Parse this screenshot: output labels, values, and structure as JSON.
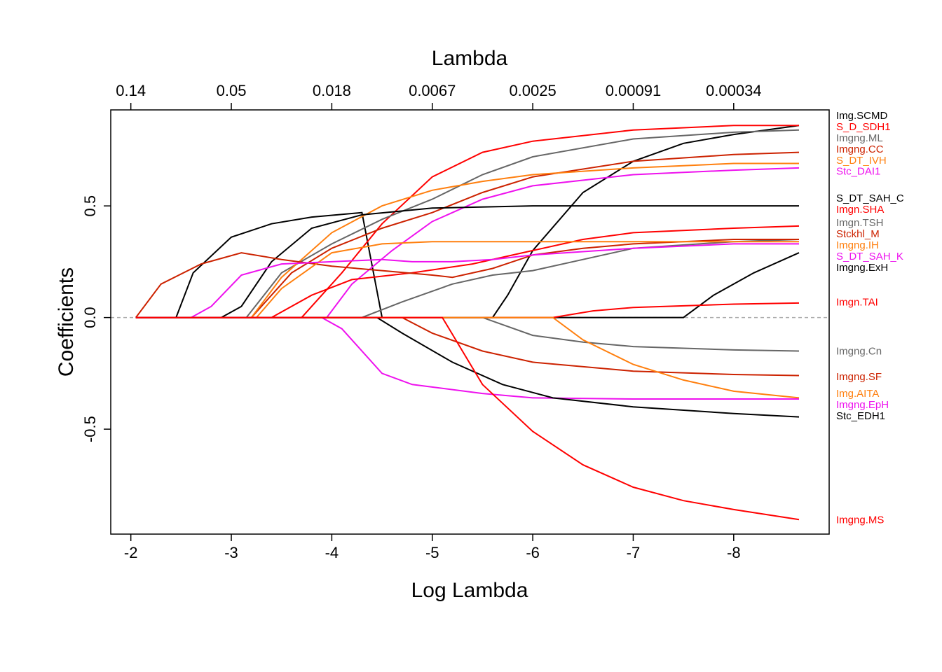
{
  "chart_data": {
    "type": "line",
    "title": "",
    "xlabel": "Log Lambda",
    "ylabel": "Coefficients",
    "top_axis_label": "Lambda",
    "xlim": [
      -1.8,
      -8.95
    ],
    "ylim": [
      -0.97,
      0.93
    ],
    "x_ticks": [
      -2,
      -3,
      -4,
      -5,
      -6,
      -7,
      -8
    ],
    "x_tick_labels": [
      "-2",
      "-3",
      "-4",
      "-5",
      "-6",
      "-7",
      "-8"
    ],
    "y_ticks": [
      0.5,
      0.0,
      -0.5
    ],
    "y_tick_labels": [
      "0.5",
      "0.0",
      "-0.5"
    ],
    "top_ticks": [
      -2,
      -3,
      -4,
      -5,
      -6,
      -7,
      -8
    ],
    "top_tick_labels": [
      "0.14",
      "0.05",
      "0.018",
      "0.0067",
      "0.0025",
      "0.00091",
      "0.00034"
    ],
    "zero_line": true,
    "grid": false,
    "series": [
      {
        "name": "Img.SCMD",
        "color": "#000000",
        "label_y": 0.905,
        "points": [
          [
            -2.05,
            0
          ],
          [
            -2.45,
            0
          ],
          [
            -2.62,
            0.2
          ],
          [
            -3.0,
            0.36
          ],
          [
            -3.4,
            0.42
          ],
          [
            -3.8,
            0.45
          ],
          [
            -4.3,
            0.47
          ],
          [
            -4.5,
            0
          ],
          [
            -5.6,
            0
          ],
          [
            -5.75,
            0.1
          ],
          [
            -6.0,
            0.3
          ],
          [
            -6.5,
            0.56
          ],
          [
            -7.0,
            0.7
          ],
          [
            -7.5,
            0.78
          ],
          [
            -8.0,
            0.82
          ],
          [
            -8.65,
            0.86
          ]
        ]
      },
      {
        "name": "S_D_SDH1",
        "color": "#ff0000",
        "label_y": 0.855,
        "points": [
          [
            -2.05,
            0
          ],
          [
            -3.7,
            0
          ],
          [
            -4.1,
            0.2
          ],
          [
            -4.5,
            0.42
          ],
          [
            -5.0,
            0.63
          ],
          [
            -5.5,
            0.74
          ],
          [
            -6.0,
            0.79
          ],
          [
            -7.0,
            0.84
          ],
          [
            -8.0,
            0.86
          ],
          [
            -8.65,
            0.86
          ]
        ]
      },
      {
        "name": "Imgng.ML",
        "color": "#666666",
        "label_y": 0.805,
        "points": [
          [
            -2.05,
            0
          ],
          [
            -3.15,
            0
          ],
          [
            -3.5,
            0.2
          ],
          [
            -4.0,
            0.33
          ],
          [
            -4.5,
            0.44
          ],
          [
            -5.0,
            0.53
          ],
          [
            -5.5,
            0.64
          ],
          [
            -6.0,
            0.72
          ],
          [
            -7.0,
            0.8
          ],
          [
            -8.0,
            0.83
          ],
          [
            -8.65,
            0.84
          ]
        ]
      },
      {
        "name": "Imgng.CC",
        "color": "#cc2200",
        "label_y": 0.755,
        "points": [
          [
            -2.05,
            0
          ],
          [
            -3.2,
            0
          ],
          [
            -3.6,
            0.2
          ],
          [
            -4.0,
            0.31
          ],
          [
            -4.5,
            0.4
          ],
          [
            -5.0,
            0.47
          ],
          [
            -5.5,
            0.56
          ],
          [
            -6.0,
            0.63
          ],
          [
            -7.0,
            0.7
          ],
          [
            -8.0,
            0.73
          ],
          [
            -8.65,
            0.74
          ]
        ]
      },
      {
        "name": "S_DT_IVH",
        "color": "#ff7f0e",
        "label_y": 0.705,
        "points": [
          [
            -2.05,
            0
          ],
          [
            -3.2,
            0
          ],
          [
            -3.5,
            0.18
          ],
          [
            -4.0,
            0.38
          ],
          [
            -4.5,
            0.5
          ],
          [
            -5.0,
            0.57
          ],
          [
            -5.5,
            0.61
          ],
          [
            -6.0,
            0.64
          ],
          [
            -7.0,
            0.67
          ],
          [
            -8.0,
            0.69
          ],
          [
            -8.65,
            0.69
          ]
        ]
      },
      {
        "name": "Stc_DAI1",
        "color": "#ee11ee",
        "label_y": 0.655,
        "points": [
          [
            -2.05,
            0
          ],
          [
            -3.95,
            0
          ],
          [
            -4.2,
            0.15
          ],
          [
            -4.6,
            0.3
          ],
          [
            -5.0,
            0.43
          ],
          [
            -5.5,
            0.53
          ],
          [
            -6.0,
            0.59
          ],
          [
            -7.0,
            0.64
          ],
          [
            -8.0,
            0.66
          ],
          [
            -8.65,
            0.67
          ]
        ]
      },
      {
        "name": "S_DT_SAH_C",
        "color": "#000000",
        "label_y": 0.535,
        "points": [
          [
            -2.05,
            0
          ],
          [
            -2.9,
            0
          ],
          [
            -3.1,
            0.05
          ],
          [
            -3.4,
            0.25
          ],
          [
            -3.8,
            0.4
          ],
          [
            -4.3,
            0.46
          ],
          [
            -5.0,
            0.49
          ],
          [
            -6.0,
            0.5
          ],
          [
            -7.0,
            0.5
          ],
          [
            -8.0,
            0.5
          ],
          [
            -8.65,
            0.5
          ]
        ]
      },
      {
        "name": "Imgn.SHA",
        "color": "#ff0000",
        "label_y": 0.485,
        "points": [
          [
            -2.05,
            0
          ],
          [
            -3.4,
            0
          ],
          [
            -3.8,
            0.1
          ],
          [
            -4.2,
            0.17
          ],
          [
            -4.8,
            0.2
          ],
          [
            -5.4,
            0.24
          ],
          [
            -6.0,
            0.3
          ],
          [
            -6.5,
            0.35
          ],
          [
            -7.0,
            0.38
          ],
          [
            -8.0,
            0.4
          ],
          [
            -8.65,
            0.41
          ]
        ]
      },
      {
        "name": "Imgn.TSH",
        "color": "#666666",
        "label_y": 0.425,
        "points": [
          [
            -2.05,
            0
          ],
          [
            -4.3,
            0
          ],
          [
            -4.7,
            0.07
          ],
          [
            -5.2,
            0.15
          ],
          [
            -5.6,
            0.19
          ],
          [
            -6.0,
            0.21
          ],
          [
            -6.5,
            0.26
          ],
          [
            -7.0,
            0.31
          ],
          [
            -8.0,
            0.34
          ],
          [
            -8.65,
            0.35
          ]
        ]
      },
      {
        "name": "Stckhl_M",
        "color": "#cc2200",
        "label_y": 0.375,
        "points": [
          [
            -2.05,
            0
          ],
          [
            -2.3,
            0.15
          ],
          [
            -2.7,
            0.24
          ],
          [
            -3.1,
            0.29
          ],
          [
            -3.5,
            0.26
          ],
          [
            -4.0,
            0.23
          ],
          [
            -4.5,
            0.21
          ],
          [
            -5.0,
            0.19
          ],
          [
            -5.2,
            0.18
          ],
          [
            -5.6,
            0.22
          ],
          [
            -6.0,
            0.28
          ],
          [
            -6.5,
            0.31
          ],
          [
            -7.0,
            0.33
          ],
          [
            -8.0,
            0.35
          ],
          [
            -8.65,
            0.35
          ]
        ]
      },
      {
        "name": "Imgng.IH",
        "color": "#ff7f0e",
        "label_y": 0.325,
        "points": [
          [
            -2.05,
            0
          ],
          [
            -3.25,
            0
          ],
          [
            -3.5,
            0.13
          ],
          [
            -4.0,
            0.29
          ],
          [
            -4.5,
            0.33
          ],
          [
            -5.0,
            0.34
          ],
          [
            -6.0,
            0.34
          ],
          [
            -7.0,
            0.34
          ],
          [
            -8.0,
            0.34
          ],
          [
            -8.65,
            0.34
          ]
        ]
      },
      {
        "name": "S_DT_SAH_K",
        "color": "#ee11ee",
        "label_y": 0.275,
        "points": [
          [
            -2.05,
            0
          ],
          [
            -2.6,
            0
          ],
          [
            -2.8,
            0.05
          ],
          [
            -3.1,
            0.19
          ],
          [
            -3.5,
            0.24
          ],
          [
            -4.0,
            0.25
          ],
          [
            -4.5,
            0.26
          ],
          [
            -4.8,
            0.25
          ],
          [
            -5.2,
            0.25
          ],
          [
            -5.6,
            0.26
          ],
          [
            -6.0,
            0.28
          ],
          [
            -7.0,
            0.31
          ],
          [
            -8.0,
            0.33
          ],
          [
            -8.65,
            0.33
          ]
        ]
      },
      {
        "name": "Imgng.ExH",
        "color": "#000000",
        "label_y": 0.225,
        "points": [
          [
            -2.05,
            0
          ],
          [
            -7.5,
            0
          ],
          [
            -7.8,
            0.1
          ],
          [
            -8.2,
            0.2
          ],
          [
            -8.65,
            0.29
          ]
        ]
      },
      {
        "name": "Imgn.TAI",
        "color": "#ff0000",
        "label_y": 0.07,
        "points": [
          [
            -2.05,
            0
          ],
          [
            -6.2,
            0
          ],
          [
            -6.6,
            0.03
          ],
          [
            -7.0,
            0.045
          ],
          [
            -8.0,
            0.06
          ],
          [
            -8.65,
            0.065
          ]
        ]
      },
      {
        "name": "Imgng.Cn",
        "color": "#666666",
        "label_y": -0.15,
        "points": [
          [
            -2.05,
            0
          ],
          [
            -5.5,
            0
          ],
          [
            -6.0,
            -0.08
          ],
          [
            -6.5,
            -0.11
          ],
          [
            -7.0,
            -0.13
          ],
          [
            -8.0,
            -0.145
          ],
          [
            -8.65,
            -0.15
          ]
        ]
      },
      {
        "name": "Imgng.SF",
        "color": "#cc2200",
        "label_y": -0.265,
        "points": [
          [
            -2.05,
            0
          ],
          [
            -4.7,
            0
          ],
          [
            -5.0,
            -0.07
          ],
          [
            -5.5,
            -0.15
          ],
          [
            -6.0,
            -0.2
          ],
          [
            -7.0,
            -0.24
          ],
          [
            -8.0,
            -0.255
          ],
          [
            -8.65,
            -0.26
          ]
        ]
      },
      {
        "name": "Img.AITA",
        "color": "#ff7f0e",
        "label_y": -0.34,
        "points": [
          [
            -2.05,
            0
          ],
          [
            -6.2,
            0
          ],
          [
            -6.5,
            -0.1
          ],
          [
            -7.0,
            -0.21
          ],
          [
            -7.5,
            -0.28
          ],
          [
            -8.0,
            -0.33
          ],
          [
            -8.65,
            -0.36
          ]
        ]
      },
      {
        "name": "Imgng.EpH",
        "color": "#ee11ee",
        "label_y": -0.39,
        "points": [
          [
            -2.05,
            0
          ],
          [
            -3.9,
            0
          ],
          [
            -4.1,
            -0.05
          ],
          [
            -4.5,
            -0.25
          ],
          [
            -4.8,
            -0.3
          ],
          [
            -5.5,
            -0.34
          ],
          [
            -6.0,
            -0.36
          ],
          [
            -7.0,
            -0.365
          ],
          [
            -8.0,
            -0.365
          ],
          [
            -8.65,
            -0.365
          ]
        ]
      },
      {
        "name": "Stc_EDH1",
        "color": "#000000",
        "label_y": -0.44,
        "points": [
          [
            -2.05,
            0
          ],
          [
            -4.45,
            0
          ],
          [
            -4.7,
            -0.07
          ],
          [
            -5.2,
            -0.2
          ],
          [
            -5.7,
            -0.3
          ],
          [
            -6.2,
            -0.36
          ],
          [
            -7.0,
            -0.4
          ],
          [
            -8.0,
            -0.43
          ],
          [
            -8.65,
            -0.445
          ]
        ]
      },
      {
        "name": "Imgng.MS",
        "color": "#ff0000",
        "label_y": -0.905,
        "points": [
          [
            -2.05,
            0
          ],
          [
            -5.1,
            0
          ],
          [
            -5.5,
            -0.3
          ],
          [
            -6.0,
            -0.51
          ],
          [
            -6.5,
            -0.66
          ],
          [
            -7.0,
            -0.76
          ],
          [
            -7.5,
            -0.82
          ],
          [
            -8.0,
            -0.86
          ],
          [
            -8.65,
            -0.905
          ]
        ]
      }
    ]
  }
}
